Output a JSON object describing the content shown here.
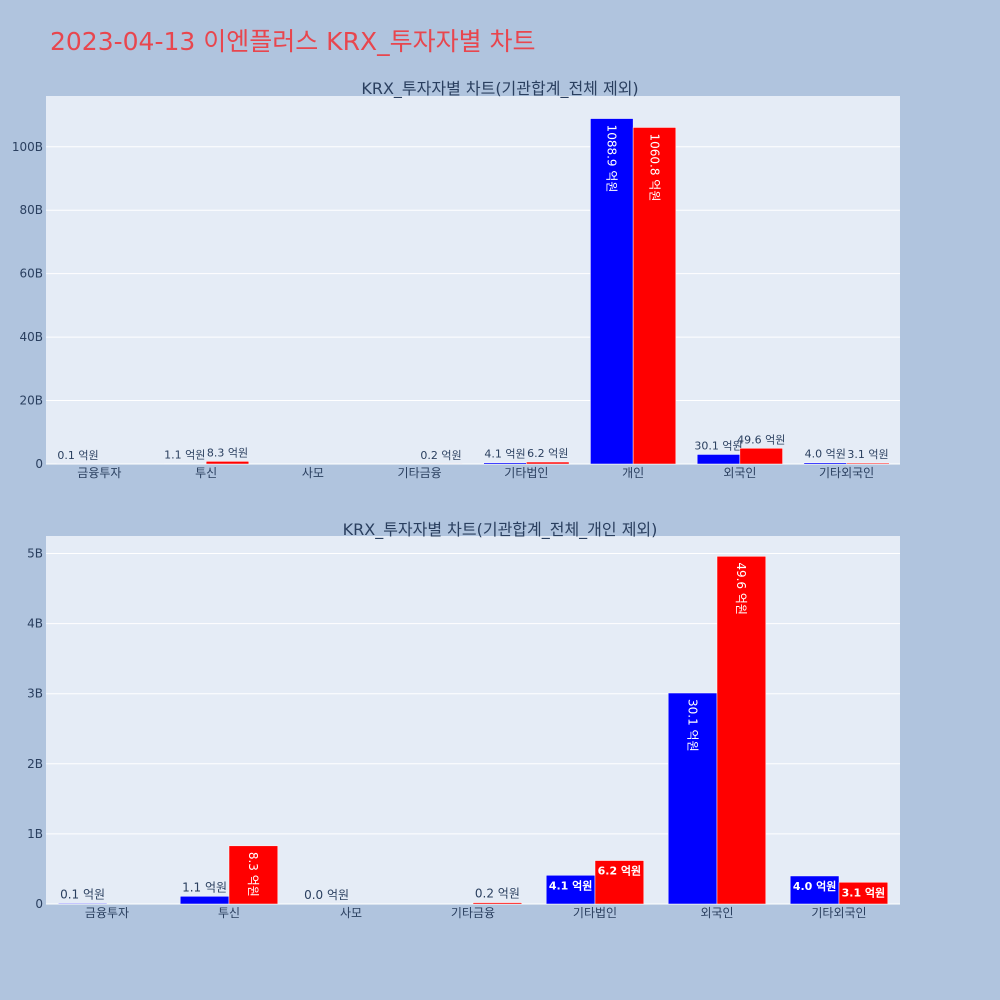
{
  "title": "2023-04-13 이엔플러스 KRX_투자자별 차트",
  "colors": {
    "buy": "#0000ff",
    "sell": "#ff0000",
    "plot_bg": "#e5ecf6",
    "page_bg": "#b0c4de",
    "title": "#e8464e"
  },
  "chart_data": [
    {
      "type": "bar",
      "title": "KRX_투자자별 차트(기관합계_전체 제외)",
      "categories": [
        "금융투자",
        "투신",
        "사모",
        "기타금융",
        "기타법인",
        "개인",
        "외국인",
        "기타외국인"
      ],
      "ylim": [
        0,
        116
      ],
      "yticks": [
        0,
        20,
        40,
        60,
        80,
        100
      ],
      "ytick_labels": [
        "0",
        "20B",
        "40B",
        "60B",
        "80B",
        "100B"
      ],
      "series": [
        {
          "color": "#0000ff",
          "values": [
            0.01,
            0.11,
            0,
            0,
            0.41,
            108.89,
            3.01,
            0.4
          ],
          "labels": [
            "0.1 억원",
            "1.1 억원",
            "",
            "",
            "4.1 억원",
            "1088.9 억원",
            "30.1 억원",
            "4.0 억원"
          ]
        },
        {
          "color": "#ff0000",
          "values": [
            0,
            0.83,
            0,
            0.02,
            0.62,
            106.08,
            4.96,
            0.31
          ],
          "labels": [
            "",
            "8.3 억원",
            "",
            "0.2 억원",
            "6.2 억원",
            "1060.8 억원",
            "49.6 억원",
            "3.1 억원"
          ]
        }
      ]
    },
    {
      "type": "bar",
      "title": "KRX_투자자별 차트(기관합계_전체_개인 제외)",
      "categories": [
        "금융투자",
        "투신",
        "사모",
        "기타금융",
        "기타법인",
        "외국인",
        "기타외국인"
      ],
      "ylim": [
        0,
        5.25
      ],
      "yticks": [
        0,
        1,
        2,
        3,
        4,
        5
      ],
      "ytick_labels": [
        "0",
        "1B",
        "2B",
        "3B",
        "4B",
        "5B"
      ],
      "series": [
        {
          "color": "#0000ff",
          "values": [
            0.01,
            0.11,
            0,
            0,
            0.41,
            3.01,
            0.4
          ],
          "labels": [
            "0.1 억원",
            "1.1 억원",
            "0.0 억원",
            "",
            "4.1 억원",
            "30.1 억원",
            "4.0 억원"
          ]
        },
        {
          "color": "#ff0000",
          "values": [
            0,
            0.83,
            0,
            0.02,
            0.62,
            4.96,
            0.31
          ],
          "labels": [
            "",
            "8.3 억원",
            "",
            "0.2 억원",
            "6.2 억원",
            "49.6 억원",
            "3.1 억원"
          ]
        }
      ]
    }
  ]
}
